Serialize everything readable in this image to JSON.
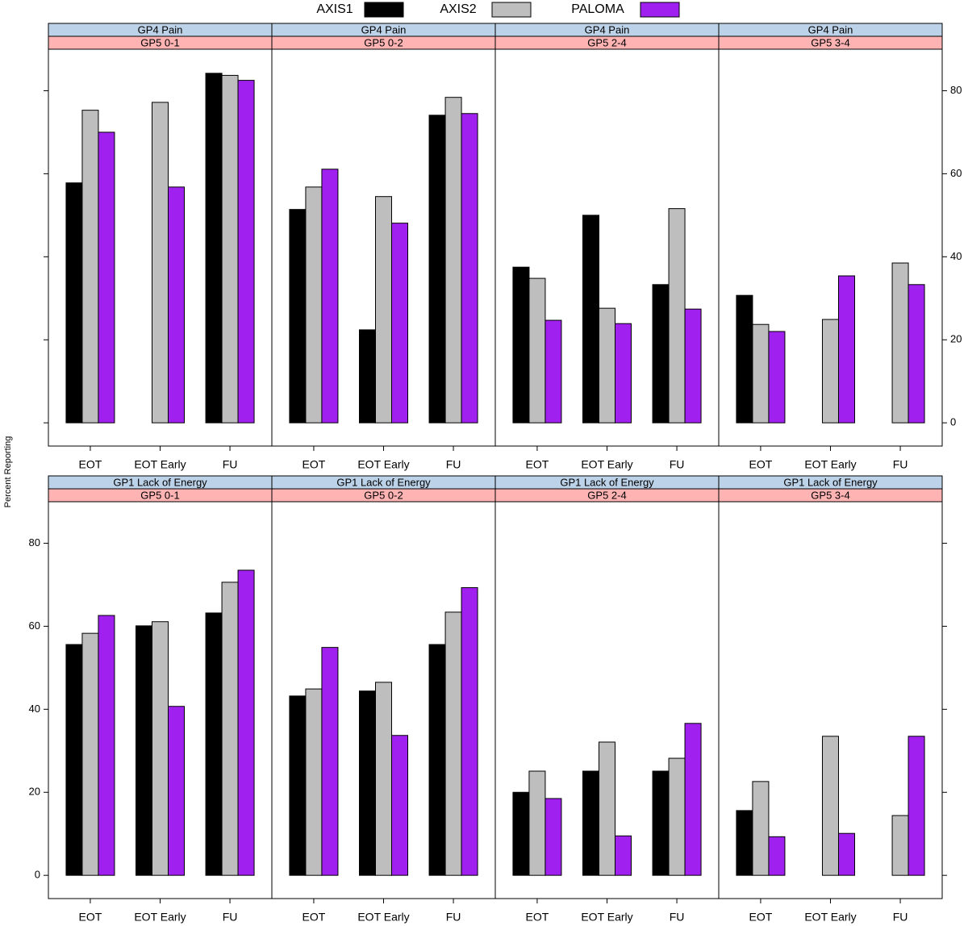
{
  "chart_data": {
    "type": "bar",
    "ylabel": "Percent Reporting",
    "categories": [
      "EOT",
      "EOT Early",
      "FU"
    ],
    "ylim": [
      -5.6,
      90
    ],
    "yticks": [
      0,
      20,
      40,
      60,
      80
    ],
    "panels": [
      {
        "title": "GP4 Pain",
        "subtitle": "GP5 0-1",
        "yaxis": "right"
      },
      {
        "title": "GP4 Pain",
        "subtitle": "GP5 0-2",
        "yaxis": "right"
      },
      {
        "title": "GP4 Pain",
        "subtitle": "GP5 2-4",
        "yaxis": "right"
      },
      {
        "title": "GP4 Pain",
        "subtitle": "GP5 3-4",
        "yaxis": "right"
      },
      {
        "title": "GP1 Lack of Energy",
        "subtitle": "GP5 0-1",
        "yaxis": "left"
      },
      {
        "title": "GP1 Lack of Energy",
        "subtitle": "GP5 0-2",
        "yaxis": "left"
      },
      {
        "title": "GP1 Lack of Energy",
        "subtitle": "GP5 2-4",
        "yaxis": "left"
      },
      {
        "title": "GP1 Lack of Energy",
        "subtitle": "GP5 3-4",
        "yaxis": "left"
      }
    ],
    "series": [
      {
        "name": "AXIS1",
        "color": "#000000",
        "values": [
          [
            57.8,
            0,
            84.2
          ],
          [
            51.4,
            22.4,
            74.1
          ],
          [
            37.5,
            50.0,
            33.3
          ],
          [
            30.7,
            0,
            0
          ],
          [
            55.6,
            60.1,
            63.2
          ],
          [
            43.2,
            44.4,
            55.6
          ],
          [
            20.0,
            25.1,
            25.1
          ],
          [
            15.6,
            0,
            0
          ]
        ]
      },
      {
        "name": "AXIS2",
        "color": "#bebebe",
        "values": [
          [
            75.3,
            77.2,
            83.7
          ],
          [
            56.8,
            54.5,
            78.4
          ],
          [
            34.8,
            27.6,
            51.6
          ],
          [
            23.7,
            24.9,
            38.5
          ],
          [
            58.3,
            61.1,
            70.6
          ],
          [
            44.9,
            46.5,
            63.4
          ],
          [
            25.1,
            32.1,
            28.2
          ],
          [
            22.6,
            33.5,
            14.4
          ]
        ]
      },
      {
        "name": "PALOMA",
        "color": "#a020f0",
        "values": [
          [
            70.0,
            56.8,
            82.5
          ],
          [
            61.1,
            48.1,
            74.5
          ],
          [
            24.7,
            23.9,
            27.4
          ],
          [
            22.0,
            35.4,
            33.3
          ],
          [
            62.6,
            40.7,
            73.5
          ],
          [
            54.9,
            33.7,
            69.3
          ],
          [
            18.5,
            9.5,
            36.6
          ],
          [
            9.3,
            10.1,
            33.5
          ]
        ]
      }
    ]
  }
}
